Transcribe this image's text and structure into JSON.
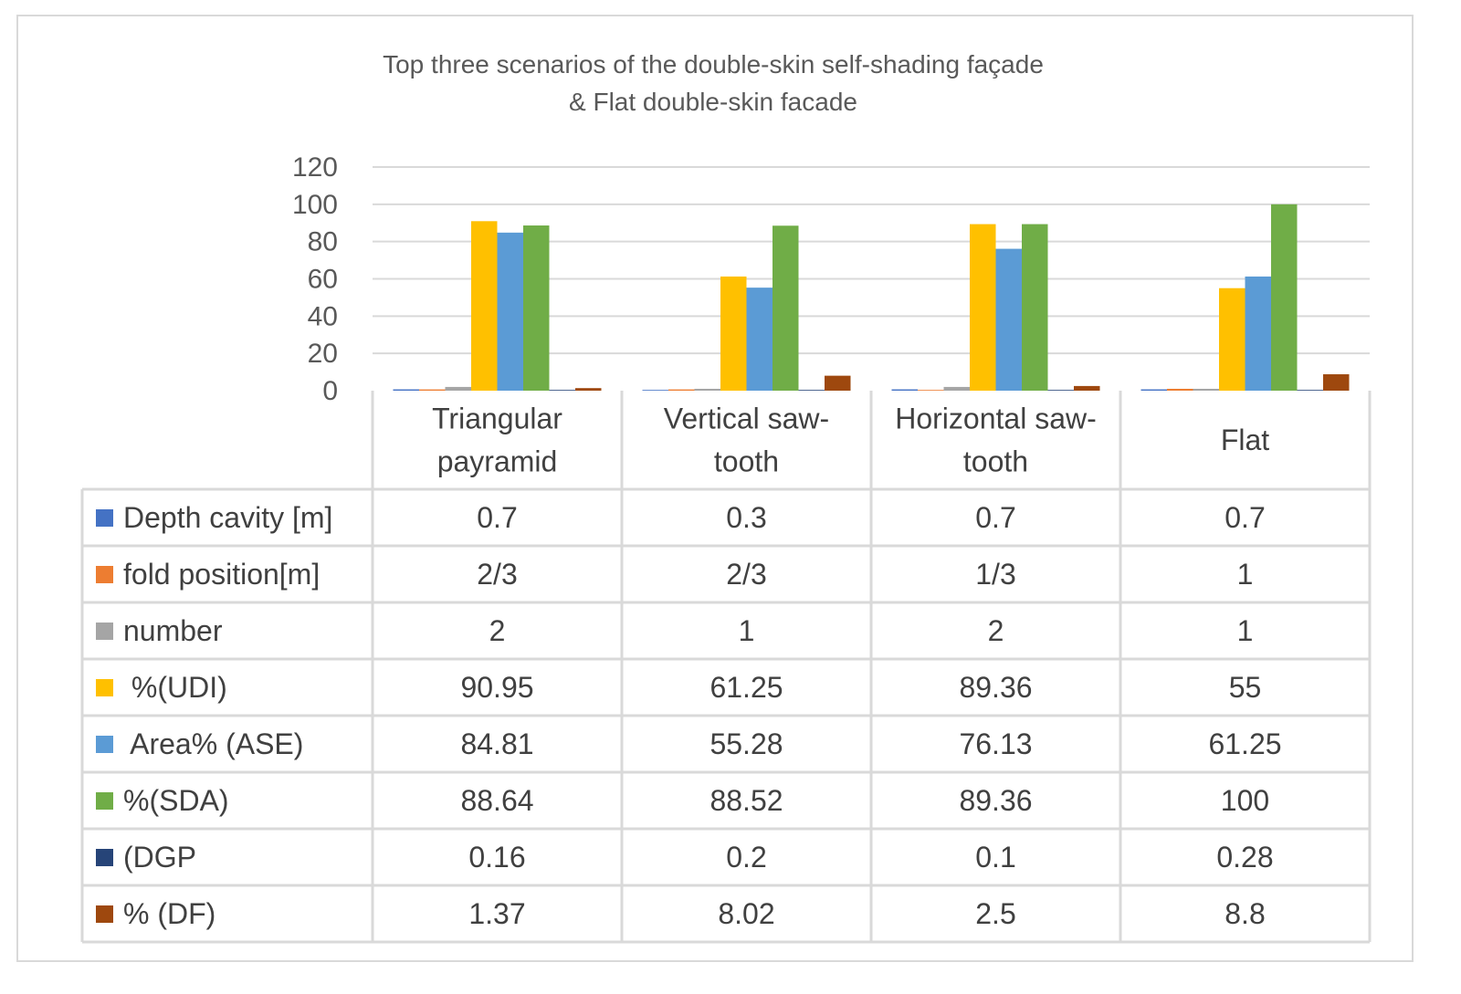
{
  "chart_data": {
    "type": "bar",
    "title_lines": [
      "Top three scenarios of the double-skin self-shading façade",
      "& Flat double-skin facade"
    ],
    "categories": [
      [
        "Triangular",
        "payramid"
      ],
      [
        "Vertical saw-",
        "tooth"
      ],
      [
        "Horizontal saw-",
        "tooth"
      ],
      [
        "Flat"
      ]
    ],
    "ylim": [
      0,
      120
    ],
    "yticks": [
      "0",
      "20",
      "40",
      "60",
      "80",
      "100",
      "120"
    ],
    "grid": true,
    "legend": "data-table",
    "series": [
      {
        "name": "Depth cavity [m]",
        "color": "#4472c4",
        "values": [
          0.7,
          0.3,
          0.7,
          0.7
        ],
        "labels": [
          "0.7",
          "0.3",
          "0.7",
          "0.7"
        ]
      },
      {
        "name": "fold position[m]",
        "color": "#ed7d31",
        "values": [
          0.667,
          0.667,
          0.333,
          1
        ],
        "labels": [
          "2/3",
          "2/3",
          "1/3",
          "1"
        ]
      },
      {
        "name": "number",
        "color": "#a5a5a5",
        "values": [
          2,
          1,
          2,
          1
        ],
        "labels": [
          "2",
          "1",
          "2",
          "1"
        ]
      },
      {
        "name": " %(UDI)",
        "color": "#ffc000",
        "values": [
          90.95,
          61.25,
          89.36,
          55
        ],
        "labels": [
          "90.95",
          "61.25",
          "89.36",
          "55"
        ]
      },
      {
        "name": " Area% (ASE)",
        "color": "#5b9bd5",
        "values": [
          84.81,
          55.28,
          76.13,
          61.25
        ],
        "labels": [
          "84.81",
          "55.28",
          "76.13",
          "61.25"
        ]
      },
      {
        "name": "%(SDA)",
        "color": "#70ad47",
        "values": [
          88.64,
          88.52,
          89.36,
          100
        ],
        "labels": [
          "88.64",
          "88.52",
          "89.36",
          "100"
        ]
      },
      {
        "name": "(DGP",
        "color": "#264478",
        "values": [
          0.16,
          0.2,
          0.1,
          0.28
        ],
        "labels": [
          "0.16",
          "0.2",
          "0.1",
          "0.28"
        ]
      },
      {
        "name": "% (DF)",
        "color": "#9e480e",
        "values": [
          1.37,
          8.02,
          2.5,
          8.8
        ],
        "labels": [
          "1.37",
          "8.02",
          "2.5",
          "8.8"
        ]
      }
    ]
  }
}
